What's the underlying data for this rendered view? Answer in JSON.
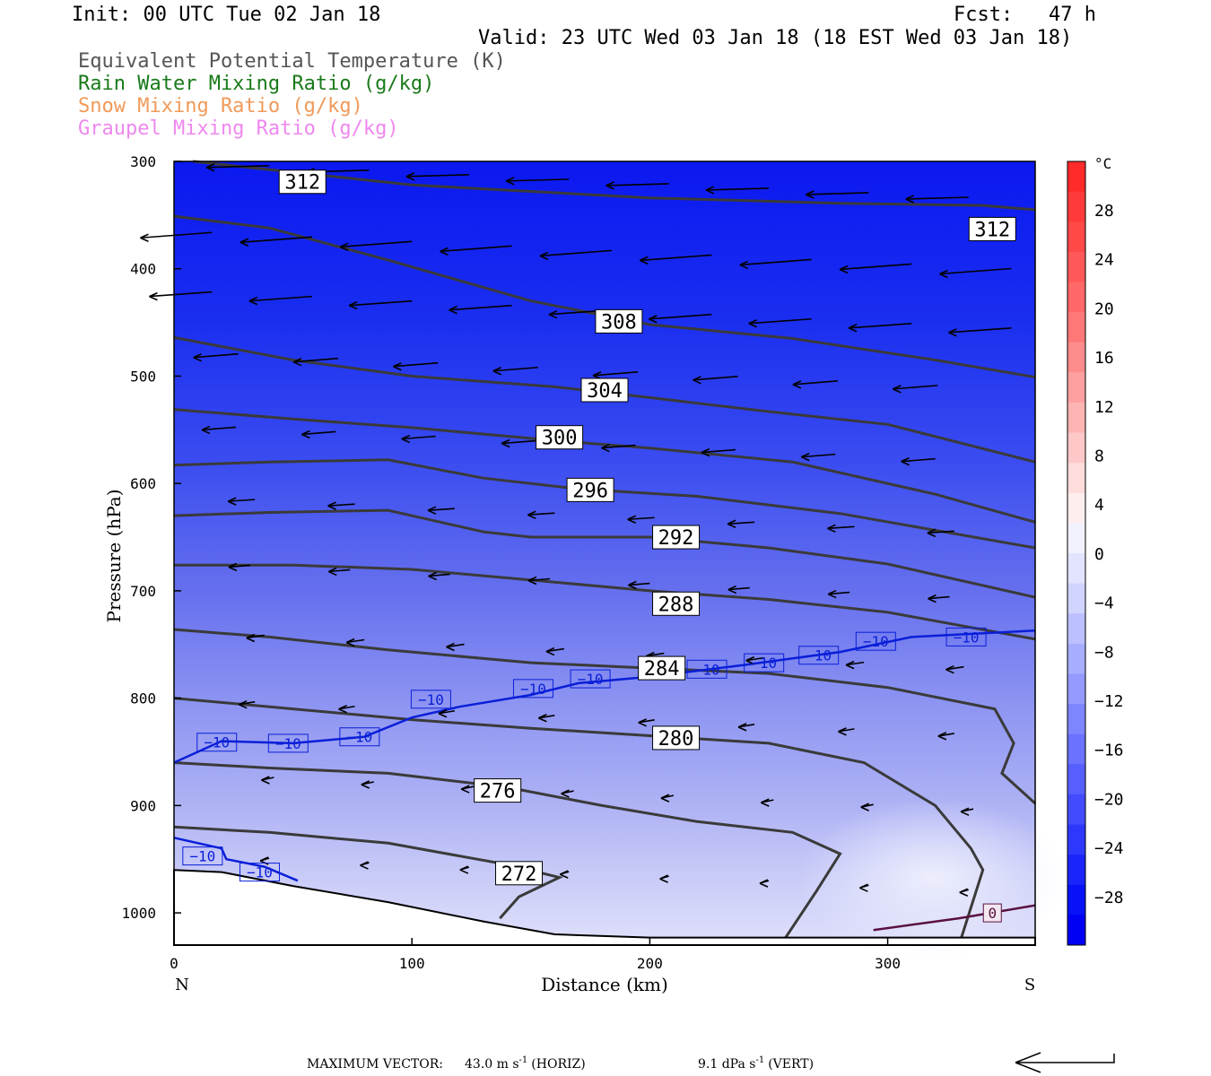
{
  "header": {
    "init": "Init: 00 UTC Tue 02 Jan 18",
    "fcst": "Fcst:   47 h",
    "valid": "Valid: 23 UTC Wed 03 Jan 18 (18 EST Wed 03 Jan 18)",
    "fields": [
      {
        "label": "Equivalent Potential Temperature (K)",
        "color": "#555555"
      },
      {
        "label": "Rain Water Mixing Ratio (g/kg)",
        "color": "#1a7a1a"
      },
      {
        "label": "Snow Mixing Ratio (g/kg)",
        "color": "#f09a5a"
      },
      {
        "label": "Graupel Mixing Ratio (g/kg)",
        "color": "#ee88ee"
      }
    ]
  },
  "colorbar": {
    "unit": "°C",
    "labels": [
      "28",
      "24",
      "20",
      "16",
      "12",
      "8",
      "4",
      "0",
      "-4",
      "-8",
      "-12",
      "-16",
      "-20",
      "-24",
      "-28"
    ]
  },
  "footer": {
    "max_vector_label": "MAXIMUM VECTOR:",
    "horiz": "43.0 m s",
    "horiz_sup": "-1",
    "horiz_tag": "(HORIZ)",
    "vert": "9.1 dPa s",
    "vert_sup": "-1",
    "vert_tag": "(VERT)"
  },
  "chart_data": {
    "type": "cross-section",
    "xlabel": "Distance (km)",
    "ylabel": "Pressure (hPa)",
    "xlim": [
      0,
      362
    ],
    "ylim": [
      300,
      1030
    ],
    "x_ticks": [
      0,
      100,
      200,
      300
    ],
    "y_ticks": [
      300,
      400,
      500,
      600,
      700,
      800,
      900,
      1000
    ],
    "x_end_labels": {
      "left": "N",
      "right": "S"
    },
    "y_scale": "linear (pressure, inverted)",
    "temperature_shading_C": {
      "min": -32,
      "max": 32,
      "step": 4
    },
    "theta_e_contours_K": [
      {
        "value": 312,
        "points": [
          [
            8,
            300
          ],
          [
            50,
            310
          ],
          [
            100,
            322
          ],
          [
            200,
            334
          ],
          [
            280,
            339
          ],
          [
            340,
            341
          ],
          [
            362,
            345
          ]
        ],
        "labels": [
          [
            54,
            319
          ],
          [
            344,
            363
          ]
        ]
      },
      {
        "value": 308,
        "points": [
          [
            0,
            351
          ],
          [
            40,
            362
          ],
          [
            90,
            392
          ],
          [
            150,
            430
          ],
          [
            200,
            452
          ],
          [
            260,
            465
          ],
          [
            320,
            485
          ],
          [
            362,
            501
          ]
        ],
        "labels": [
          [
            187,
            449
          ]
        ]
      },
      {
        "value": 304,
        "points": [
          [
            0,
            464
          ],
          [
            50,
            485
          ],
          [
            100,
            500
          ],
          [
            160,
            510
          ],
          [
            200,
            520
          ],
          [
            250,
            533
          ],
          [
            300,
            545
          ],
          [
            362,
            580
          ]
        ],
        "labels": [
          [
            181,
            513
          ]
        ]
      },
      {
        "value": 300,
        "points": [
          [
            0,
            531
          ],
          [
            50,
            540
          ],
          [
            100,
            548
          ],
          [
            160,
            560
          ],
          [
            200,
            567
          ],
          [
            260,
            580
          ],
          [
            320,
            610
          ],
          [
            362,
            636
          ]
        ],
        "labels": [
          [
            162,
            557
          ]
        ]
      },
      {
        "value": 296,
        "points": [
          [
            0,
            583
          ],
          [
            40,
            580
          ],
          [
            90,
            578
          ],
          [
            130,
            595
          ],
          [
            170,
            605
          ],
          [
            220,
            612
          ],
          [
            280,
            628
          ],
          [
            362,
            660
          ]
        ],
        "labels": [
          [
            175,
            606
          ]
        ]
      },
      {
        "value": 292,
        "points": [
          [
            0,
            630
          ],
          [
            40,
            627
          ],
          [
            90,
            625
          ],
          [
            130,
            645
          ],
          [
            150,
            650
          ],
          [
            200,
            650
          ],
          [
            250,
            660
          ],
          [
            300,
            675
          ],
          [
            362,
            706
          ]
        ],
        "labels": [
          [
            211,
            650
          ]
        ]
      },
      {
        "value": 288,
        "points": [
          [
            0,
            676
          ],
          [
            50,
            676
          ],
          [
            100,
            680
          ],
          [
            150,
            690
          ],
          [
            200,
            700
          ],
          [
            250,
            708
          ],
          [
            300,
            720
          ],
          [
            362,
            745
          ]
        ],
        "labels": [
          [
            211,
            712
          ]
        ]
      },
      {
        "value": 284,
        "points": [
          [
            0,
            736
          ],
          [
            40,
            743
          ],
          [
            90,
            755
          ],
          [
            150,
            767
          ],
          [
            200,
            772
          ],
          [
            250,
            777
          ],
          [
            300,
            790
          ],
          [
            345,
            810
          ],
          [
            353,
            842
          ],
          [
            348,
            870
          ],
          [
            362,
            898
          ]
        ],
        "labels": [
          [
            205,
            772
          ]
        ]
      },
      {
        "value": 280,
        "points": [
          [
            0,
            800
          ],
          [
            50,
            810
          ],
          [
            100,
            820
          ],
          [
            150,
            828
          ],
          [
            200,
            835
          ],
          [
            250,
            842
          ],
          [
            290,
            860
          ],
          [
            320,
            900
          ],
          [
            335,
            940
          ],
          [
            340,
            960
          ],
          [
            330,
            1030
          ]
        ],
        "labels": [
          [
            211,
            837
          ]
        ]
      },
      {
        "value": 276,
        "points": [
          [
            0,
            860
          ],
          [
            40,
            865
          ],
          [
            90,
            870
          ],
          [
            140,
            883
          ],
          [
            180,
            900
          ],
          [
            220,
            915
          ],
          [
            260,
            925
          ],
          [
            280,
            945
          ],
          [
            270,
            980
          ],
          [
            255,
            1030
          ]
        ],
        "labels": [
          [
            136,
            886
          ]
        ]
      },
      {
        "value": 272,
        "points": [
          [
            0,
            920
          ],
          [
            40,
            925
          ],
          [
            90,
            935
          ],
          [
            140,
            955
          ],
          [
            162,
            967
          ],
          [
            145,
            985
          ],
          [
            137,
            1005
          ]
        ],
        "labels": [
          [
            145,
            963
          ]
        ]
      }
    ],
    "temperature_contours_C": [
      {
        "value": -10,
        "points": [
          [
            0,
            860
          ],
          [
            20,
            840
          ],
          [
            50,
            842
          ],
          [
            80,
            836
          ],
          [
            100,
            818
          ],
          [
            120,
            808
          ],
          [
            150,
            797
          ],
          [
            170,
            786
          ],
          [
            200,
            780
          ],
          [
            240,
            769
          ],
          [
            280,
            757
          ],
          [
            310,
            743
          ],
          [
            362,
            737
          ]
        ],
        "labels": [
          [
            18,
            841
          ],
          [
            48,
            842
          ],
          [
            78,
            836
          ],
          [
            108,
            801
          ],
          [
            151,
            791
          ],
          [
            175,
            782
          ],
          [
            224,
            773
          ],
          [
            248,
            767
          ],
          [
            271,
            760
          ],
          [
            295,
            747
          ],
          [
            333,
            743
          ]
        ]
      },
      {
        "value": -10,
        "points": [
          [
            0,
            930
          ],
          [
            20,
            940
          ],
          [
            22,
            950
          ],
          [
            38,
            957
          ],
          [
            52,
            970
          ]
        ],
        "labels": [
          [
            12,
            947
          ],
          [
            36,
            962
          ]
        ]
      },
      {
        "value": 0,
        "points": [
          [
            294,
            1016
          ],
          [
            330,
            1005
          ],
          [
            362,
            993
          ]
        ],
        "labels": [
          [
            344,
            1000
          ]
        ]
      }
    ],
    "wind_vectors": "cross-section wind arrows, predominantly from S toward N (leftward), strongest aloft",
    "title": ""
  }
}
